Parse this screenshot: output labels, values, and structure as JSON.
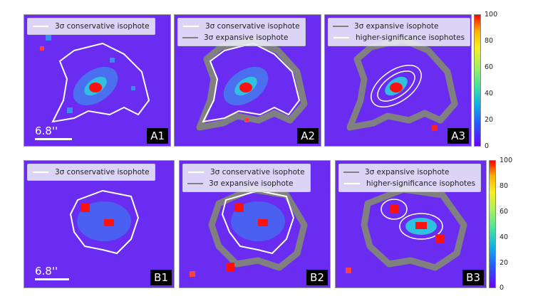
{
  "panels": [
    {
      "id": "A1",
      "legend": [
        {
          "label": "3σ conservative isophote",
          "color": "#ffffff"
        }
      ],
      "scale": "6.8''"
    },
    {
      "id": "A2",
      "legend": [
        {
          "label": "3σ conservative isophote",
          "color": "#ffffff"
        },
        {
          "label": "3σ expansive isophote",
          "color": "#808080"
        }
      ]
    },
    {
      "id": "A3",
      "legend": [
        {
          "label": "3σ expansive isophote",
          "color": "#808080"
        },
        {
          "label": "higher-significance isophotes",
          "color": "#ffffff"
        }
      ]
    },
    {
      "id": "B1",
      "legend": [
        {
          "label": "3σ conservative isophote",
          "color": "#ffffff"
        }
      ],
      "scale": "6.8''"
    },
    {
      "id": "B2",
      "legend": [
        {
          "label": "3σ conservative isophote",
          "color": "#ffffff"
        },
        {
          "label": "3σ expansive isophote",
          "color": "#808080"
        }
      ]
    },
    {
      "id": "B3",
      "legend": [
        {
          "label": "3σ expansive isophote",
          "color": "#808080"
        },
        {
          "label": "higher-significance isophotes",
          "color": "#ffffff"
        }
      ]
    }
  ],
  "colorbar": {
    "ticks": [
      "100",
      "80",
      "60",
      "40",
      "20",
      "0"
    ],
    "colors": {
      "top": "#ff0000",
      "bottom": "#6a00ff"
    }
  }
}
